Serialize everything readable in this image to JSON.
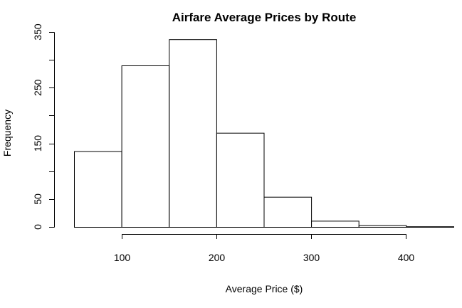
{
  "chart_data": {
    "type": "bar",
    "title": "Airfare Average Prices by Route",
    "xlabel": "Average Price ($)",
    "ylabel": "Frequency",
    "bins": [
      {
        "start": 50,
        "end": 100,
        "count": 136
      },
      {
        "start": 100,
        "end": 150,
        "count": 290
      },
      {
        "start": 150,
        "end": 200,
        "count": 337
      },
      {
        "start": 200,
        "end": 250,
        "count": 169
      },
      {
        "start": 250,
        "end": 300,
        "count": 54
      },
      {
        "start": 300,
        "end": 350,
        "count": 11
      },
      {
        "start": 350,
        "end": 400,
        "count": 3
      },
      {
        "start": 400,
        "end": 450,
        "count": 1
      }
    ],
    "xlim": [
      50,
      450
    ],
    "ylim": [
      0,
      350
    ],
    "x_ticks": [
      100,
      200,
      300,
      400
    ],
    "y_ticks": [
      0,
      50,
      150,
      250,
      350
    ],
    "y_axis_range": [
      0,
      350
    ],
    "x_axis_range": [
      100,
      400
    ],
    "grid": false,
    "legend": "none"
  }
}
